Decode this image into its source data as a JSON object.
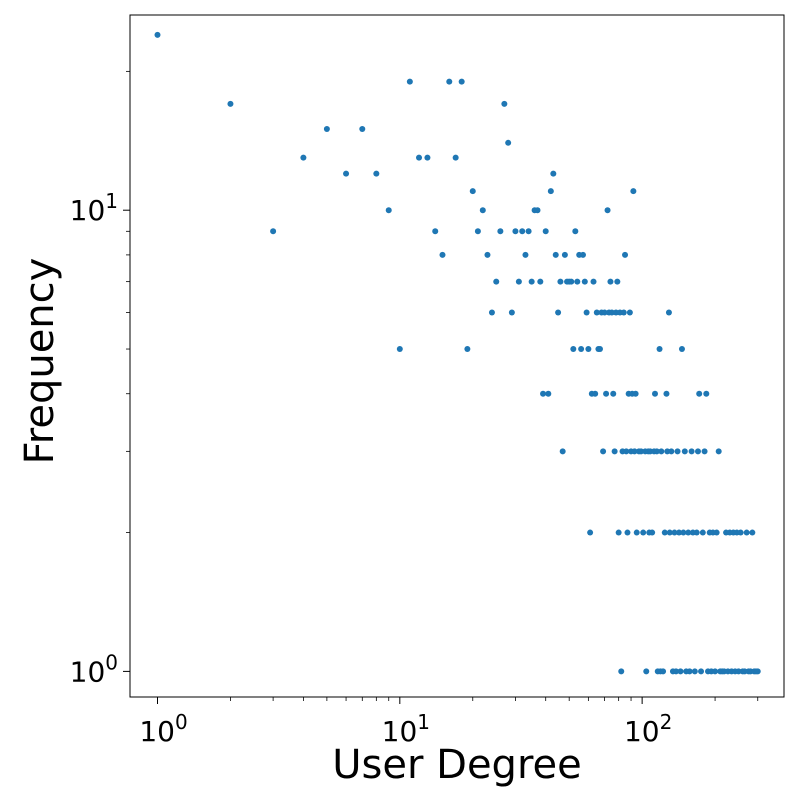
{
  "chart_data": {
    "type": "scatter",
    "title": "",
    "xlabel": "User Degree",
    "ylabel": "Frequency",
    "xscale": "log",
    "yscale": "log",
    "xlim": [
      0.77,
      385
    ],
    "ylim": [
      0.88,
      26.5
    ],
    "grid": false,
    "marker_color": "#1f77b4",
    "x_ticks": [
      {
        "value": 1,
        "base": "10",
        "exp": "0"
      },
      {
        "value": 10,
        "base": "10",
        "exp": "1"
      },
      {
        "value": 100,
        "base": "10",
        "exp": "2"
      }
    ],
    "y_ticks": [
      {
        "value": 1,
        "base": "10",
        "exp": "0"
      },
      {
        "value": 10,
        "base": "10",
        "exp": "1"
      }
    ],
    "series": [
      {
        "points": [
          [
            1,
            24
          ],
          [
            2,
            17
          ],
          [
            3,
            9
          ],
          [
            4,
            13
          ],
          [
            5,
            15
          ],
          [
            6,
            12
          ],
          [
            7,
            15
          ],
          [
            8,
            12
          ],
          [
            9,
            10
          ],
          [
            10,
            5
          ],
          [
            11,
            19
          ],
          [
            12,
            13
          ],
          [
            13,
            13
          ],
          [
            14,
            9
          ],
          [
            15,
            8
          ],
          [
            16,
            19
          ],
          [
            17,
            13
          ],
          [
            18,
            19
          ],
          [
            19,
            5
          ],
          [
            20,
            11
          ],
          [
            21,
            9
          ],
          [
            22,
            10
          ],
          [
            23,
            8
          ],
          [
            24,
            6
          ],
          [
            25,
            7
          ],
          [
            26,
            9
          ],
          [
            27,
            17
          ],
          [
            28,
            14
          ],
          [
            29,
            6
          ],
          [
            30,
            9
          ],
          [
            31,
            7
          ],
          [
            32,
            9
          ],
          [
            33,
            8
          ],
          [
            34,
            9
          ],
          [
            35,
            7
          ],
          [
            36,
            10
          ],
          [
            37,
            10
          ],
          [
            38,
            7
          ],
          [
            39,
            4
          ],
          [
            40,
            9
          ],
          [
            41,
            4
          ],
          [
            42,
            11
          ],
          [
            43,
            12
          ],
          [
            44,
            8
          ],
          [
            45,
            6
          ],
          [
            46,
            7
          ],
          [
            47,
            3
          ],
          [
            48,
            8
          ],
          [
            49,
            7
          ],
          [
            50,
            7
          ],
          [
            51,
            7
          ],
          [
            52,
            5
          ],
          [
            53,
            9
          ],
          [
            54,
            7
          ],
          [
            55,
            8
          ],
          [
            56,
            5
          ],
          [
            57,
            8
          ],
          [
            58,
            7
          ],
          [
            59,
            6
          ],
          [
            60,
            5
          ],
          [
            61,
            2
          ],
          [
            62,
            4
          ],
          [
            63,
            7
          ],
          [
            64,
            4
          ],
          [
            65,
            6
          ],
          [
            66,
            5
          ],
          [
            67,
            5
          ],
          [
            68,
            6
          ],
          [
            69,
            3
          ],
          [
            70,
            6
          ],
          [
            71,
            4
          ],
          [
            72,
            10
          ],
          [
            73,
            6
          ],
          [
            74,
            7
          ],
          [
            75,
            6
          ],
          [
            76,
            4
          ],
          [
            77,
            3
          ],
          [
            78,
            6
          ],
          [
            79,
            7
          ],
          [
            80,
            2
          ],
          [
            81,
            6
          ],
          [
            82,
            1
          ],
          [
            83,
            3
          ],
          [
            84,
            6
          ],
          [
            85,
            8
          ],
          [
            86,
            3
          ],
          [
            87,
            2
          ],
          [
            88,
            4
          ],
          [
            89,
            6
          ],
          [
            90,
            3
          ],
          [
            91,
            4
          ],
          [
            92,
            11
          ],
          [
            93,
            3
          ],
          [
            94,
            4
          ],
          [
            95,
            2
          ],
          [
            97,
            3
          ],
          [
            99,
            3
          ],
          [
            101,
            2
          ],
          [
            103,
            3
          ],
          [
            104,
            1
          ],
          [
            106,
            3
          ],
          [
            107,
            2
          ],
          [
            108,
            3
          ],
          [
            110,
            2
          ],
          [
            112,
            3
          ],
          [
            113,
            4
          ],
          [
            115,
            3
          ],
          [
            116,
            1
          ],
          [
            118,
            5
          ],
          [
            119,
            1
          ],
          [
            120,
            3
          ],
          [
            122,
            1
          ],
          [
            124,
            2
          ],
          [
            126,
            4
          ],
          [
            127,
            3
          ],
          [
            129,
            6
          ],
          [
            130,
            2
          ],
          [
            132,
            3
          ],
          [
            134,
            1
          ],
          [
            136,
            2
          ],
          [
            138,
            1
          ],
          [
            140,
            3
          ],
          [
            142,
            2
          ],
          [
            144,
            1
          ],
          [
            146,
            5
          ],
          [
            148,
            2
          ],
          [
            150,
            3
          ],
          [
            152,
            1
          ],
          [
            155,
            2
          ],
          [
            157,
            1
          ],
          [
            160,
            3
          ],
          [
            162,
            2
          ],
          [
            165,
            1
          ],
          [
            168,
            2
          ],
          [
            170,
            3
          ],
          [
            172,
            4
          ],
          [
            175,
            1
          ],
          [
            178,
            2
          ],
          [
            181,
            3
          ],
          [
            184,
            4
          ],
          [
            187,
            1
          ],
          [
            190,
            2
          ],
          [
            193,
            1
          ],
          [
            196,
            2
          ],
          [
            200,
            1
          ],
          [
            203,
            2
          ],
          [
            207,
            3
          ],
          [
            210,
            1
          ],
          [
            214,
            1
          ],
          [
            218,
            1
          ],
          [
            222,
            2
          ],
          [
            226,
            1
          ],
          [
            230,
            2
          ],
          [
            234,
            1
          ],
          [
            238,
            2
          ],
          [
            242,
            1
          ],
          [
            246,
            2
          ],
          [
            250,
            1
          ],
          [
            255,
            2
          ],
          [
            260,
            1
          ],
          [
            265,
            1
          ],
          [
            270,
            2
          ],
          [
            275,
            1
          ],
          [
            280,
            1
          ],
          [
            285,
            2
          ],
          [
            290,
            1
          ],
          [
            295,
            1
          ],
          [
            300,
            1
          ]
        ]
      }
    ]
  }
}
